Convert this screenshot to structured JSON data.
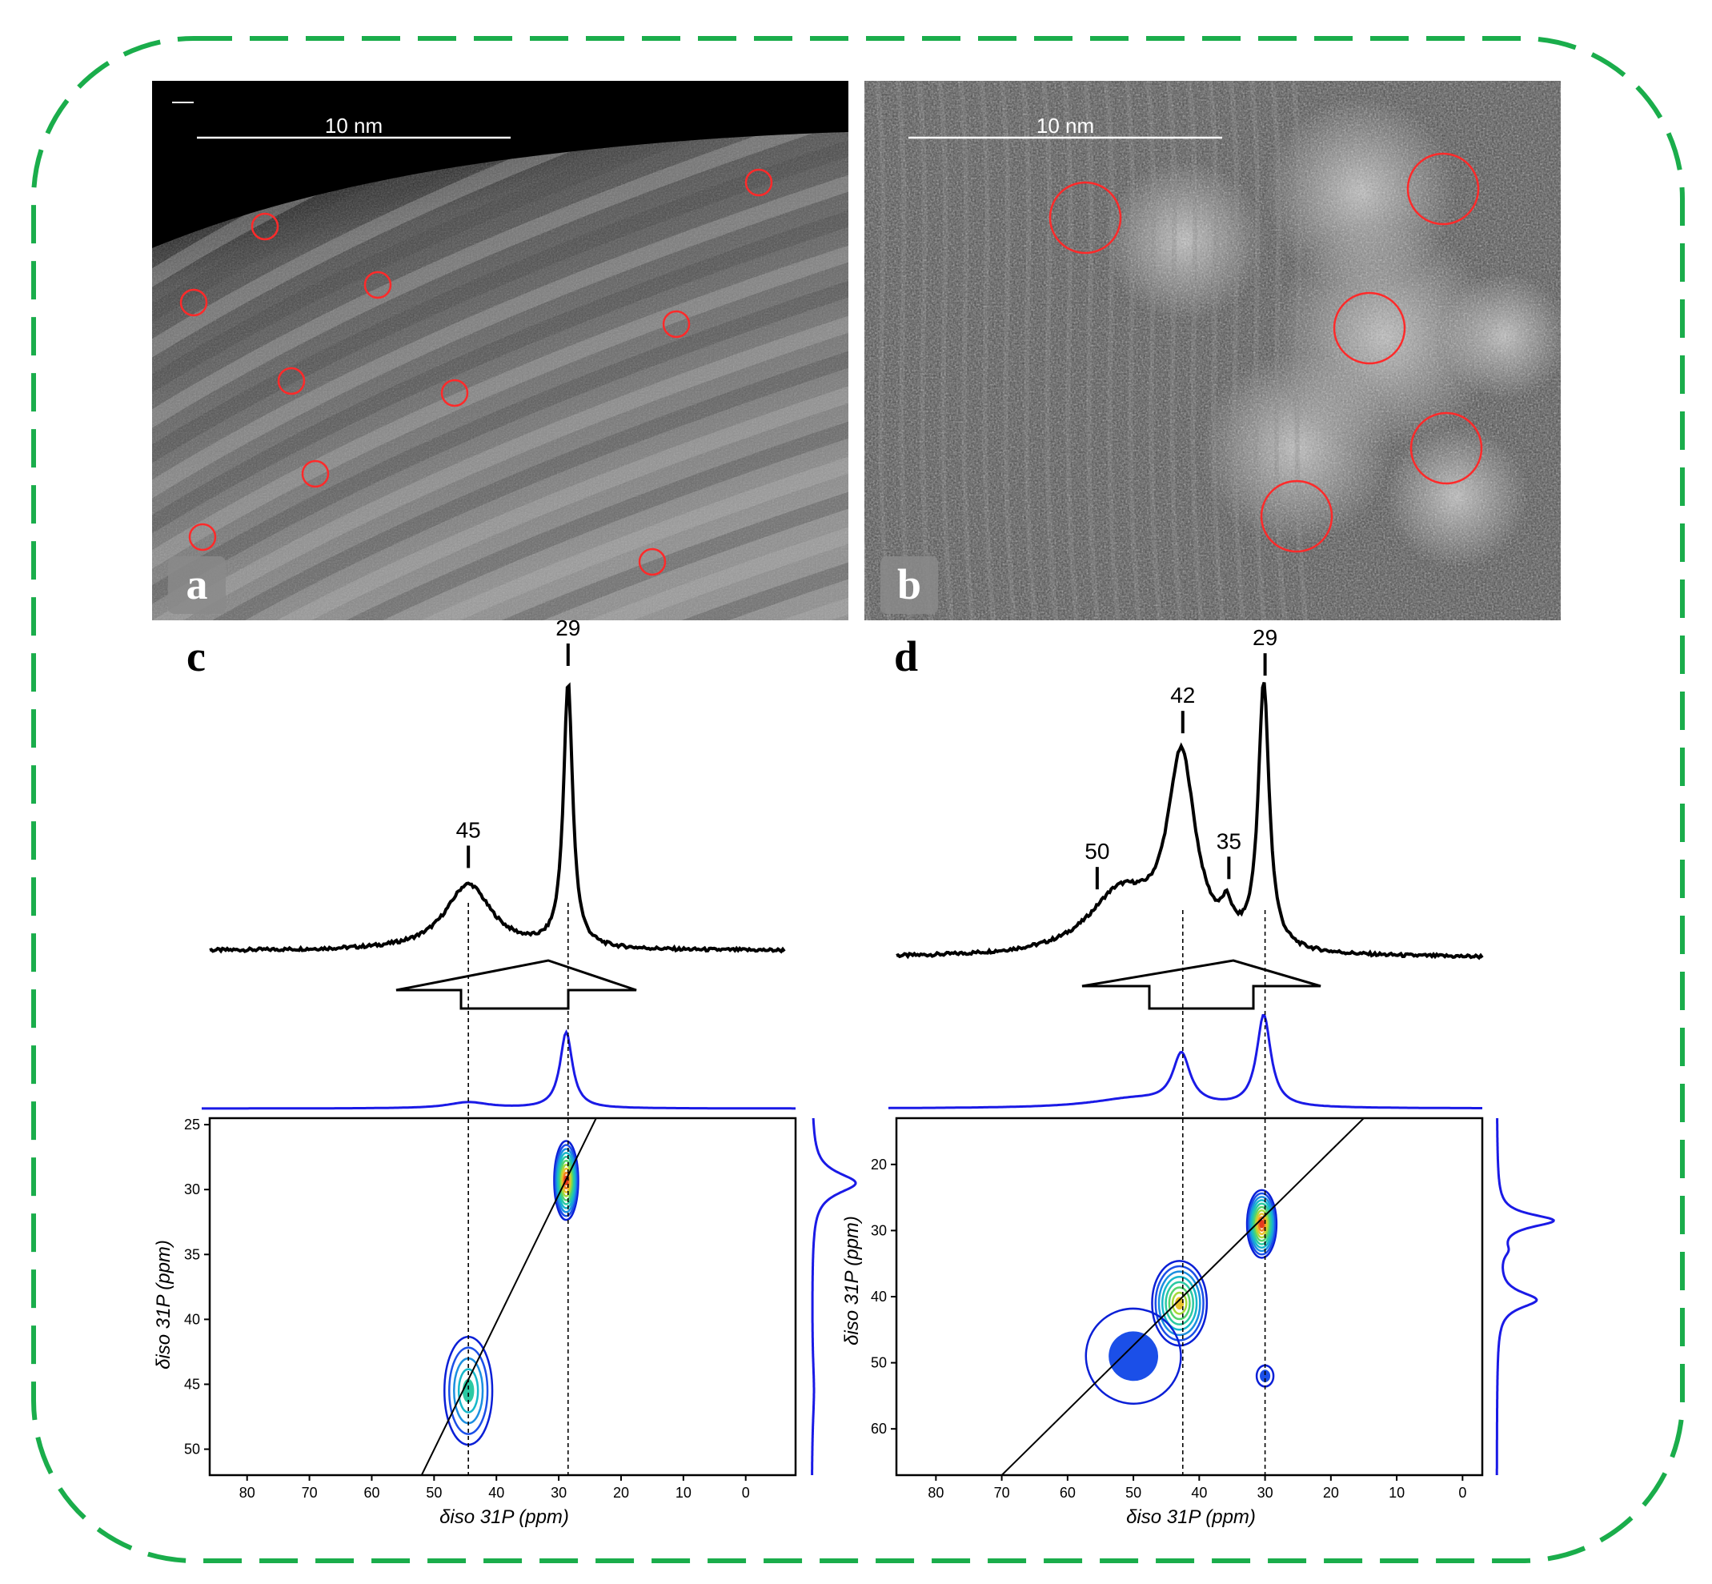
{
  "images": {
    "a": {
      "letter": "a",
      "scale_bar": "10 nm"
    },
    "b": {
      "letter": "b",
      "scale_bar": "10 nm"
    }
  },
  "axis_titles": {
    "c_x": "δiso 31P (ppm)",
    "c_y": "δiso 31P (ppm)",
    "d_x": "δiso 31P (ppm)",
    "d_y": "δiso 31P (ppm)"
  },
  "chart_data": [
    {
      "panel": "c",
      "type": "contour",
      "title": "c",
      "xlabel": "δiso 31P (ppm)",
      "ylabel": "δiso 31P (ppm)",
      "x_reversed": true,
      "y_reversed": true,
      "xlim": [
        86,
        -8
      ],
      "ylim": [
        24.5,
        52
      ],
      "x_ticks": [
        80,
        70,
        60,
        50,
        40,
        30,
        20,
        10,
        0
      ],
      "y_ticks": [
        25,
        30,
        35,
        40,
        45,
        50
      ],
      "peak_labels": [
        {
          "label": "29",
          "x": 28.5
        },
        {
          "label": "45",
          "x": 44.5
        }
      ],
      "dashed_guides_x": [
        44.5,
        28.5
      ],
      "diagonal": [
        [
          52,
          52
        ],
        [
          24,
          24.5
        ]
      ],
      "onedim_spectrum": {
        "baseline_level": 0.03,
        "peaks": [
          {
            "center": 28.5,
            "height": 1.0,
            "width": 0.9
          },
          {
            "center": 44.5,
            "height": 0.25,
            "width": 4.5
          }
        ]
      },
      "projection_top": {
        "peaks": [
          {
            "center": 28.8,
            "height": 1.0,
            "width": 1.2
          },
          {
            "center": 44.5,
            "height": 0.08,
            "width": 4.0
          }
        ]
      },
      "projection_right": {
        "peaks": [
          {
            "center": 29.5,
            "height": 1.0,
            "width": 1.0
          },
          {
            "center": 45.5,
            "height": 0.05,
            "width": 3.0
          }
        ]
      },
      "contour_peaks": [
        {
          "x": 28.8,
          "y": 29.3,
          "sx": 1.2,
          "sy": 1.9,
          "height": 1.0
        },
        {
          "x": 44.5,
          "y": 45.5,
          "sx": 2.4,
          "sy": 2.6,
          "height": 0.5
        }
      ]
    },
    {
      "panel": "d",
      "type": "contour",
      "title": "d",
      "xlabel": "δiso 31P (ppm)",
      "ylabel": "δiso 31P (ppm)",
      "x_reversed": true,
      "y_reversed": true,
      "xlim": [
        86,
        -3
      ],
      "ylim": [
        13,
        67
      ],
      "x_ticks": [
        80,
        70,
        60,
        50,
        40,
        30,
        20,
        10,
        0
      ],
      "y_ticks": [
        20,
        30,
        40,
        50,
        60
      ],
      "peak_labels": [
        {
          "label": "29",
          "x": 30
        },
        {
          "label": "42",
          "x": 42.5
        },
        {
          "label": "35",
          "x": 35.5
        },
        {
          "label": "50",
          "x": 55.5
        }
      ],
      "dashed_guides_x": [
        42.5,
        30
      ],
      "diagonal": [
        [
          70,
          67
        ],
        [
          15,
          13
        ]
      ],
      "onedim_spectrum": {
        "baseline_level": 0.02,
        "peaks": [
          {
            "center": 30.2,
            "height": 0.97,
            "width": 1.0
          },
          {
            "center": 42.7,
            "height": 0.7,
            "width": 2.6
          },
          {
            "center": 35.8,
            "height": 0.1,
            "width": 1.0
          },
          {
            "center": 52,
            "height": 0.22,
            "width": 6.0
          }
        ]
      },
      "projection_top": {
        "peaks": [
          {
            "center": 30.2,
            "height": 1.0,
            "width": 1.3
          },
          {
            "center": 42.7,
            "height": 0.55,
            "width": 1.6
          },
          {
            "center": 50,
            "height": 0.1,
            "width": 8.0
          }
        ]
      },
      "projection_right": {
        "peaks": [
          {
            "center": 28.5,
            "height": 1.0,
            "width": 1.2
          },
          {
            "center": 40.5,
            "height": 0.7,
            "width": 1.5
          },
          {
            "center": 33,
            "height": 0.12,
            "width": 1.2
          }
        ]
      },
      "contour_peaks": [
        {
          "x": 30.5,
          "y": 29,
          "sx": 1.4,
          "sy": 3.2,
          "height": 1.0
        },
        {
          "x": 43,
          "y": 41,
          "sx": 2.6,
          "sy": 4.0,
          "height": 0.75
        },
        {
          "x": 50,
          "y": 49,
          "sx": 4.5,
          "sy": 4.5,
          "height": 0.15,
          "diagonal": true
        },
        {
          "x": 30,
          "y": 52,
          "sx": 0.8,
          "sy": 1.0,
          "height": 0.05
        }
      ]
    }
  ]
}
